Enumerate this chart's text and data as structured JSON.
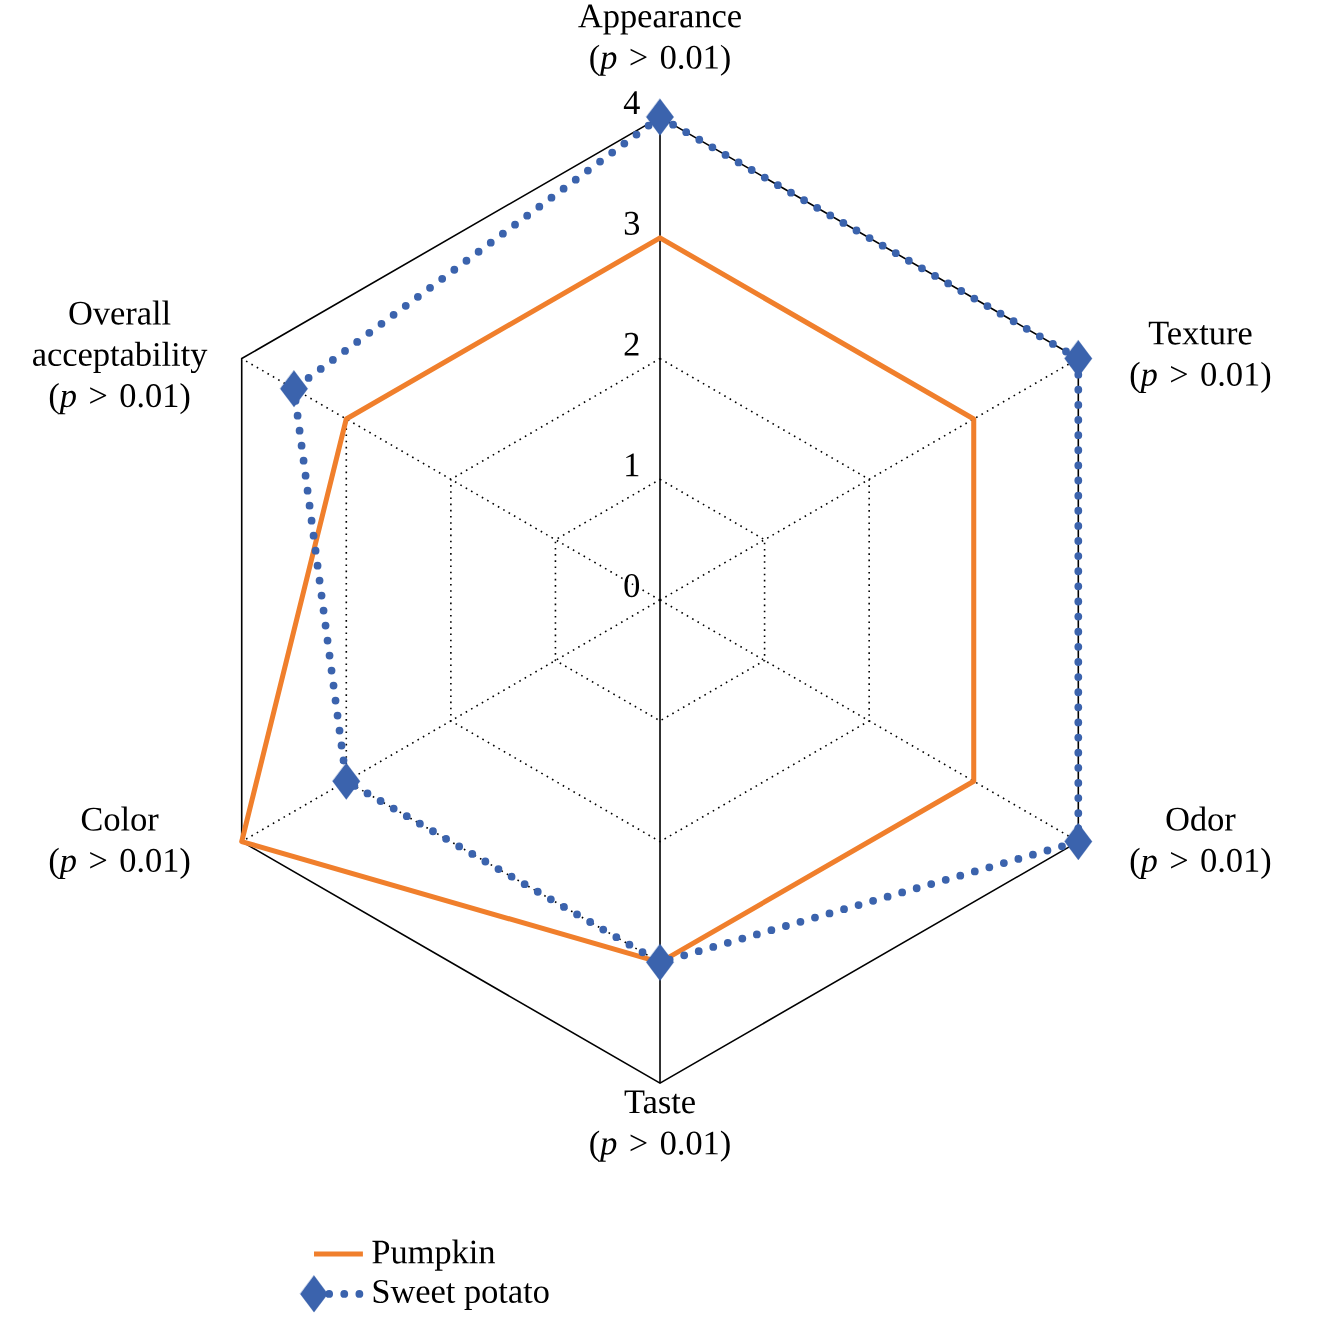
{
  "chart_data": {
    "type": "radar",
    "categories": [
      "Appearance",
      "Texture",
      "Odor",
      "Taste",
      "Color",
      "Overall acceptability"
    ],
    "annotations": [
      "(*p* > 0.01)",
      "(*p* > 0.01)",
      "(*p* > 0.01)",
      "(*p* > 0.01)",
      "(*p* > 0.01)",
      "(*p* > 0.01)"
    ],
    "series": [
      {
        "name": "Pumpkin",
        "color": "#f07f2c",
        "values": [
          3,
          3,
          3,
          3,
          4,
          3
        ],
        "marker": "none",
        "line_style": "solid"
      },
      {
        "name": "Sweet potato",
        "color": "#3b63ad",
        "values": [
          4,
          4,
          4,
          3,
          3,
          3.5
        ],
        "marker": "diamond",
        "line_style": "dotted"
      }
    ],
    "ylim": [
      0,
      4
    ],
    "yticks": [
      0,
      1,
      2,
      3,
      4
    ],
    "grid": true,
    "legend": "bottom left"
  }
}
